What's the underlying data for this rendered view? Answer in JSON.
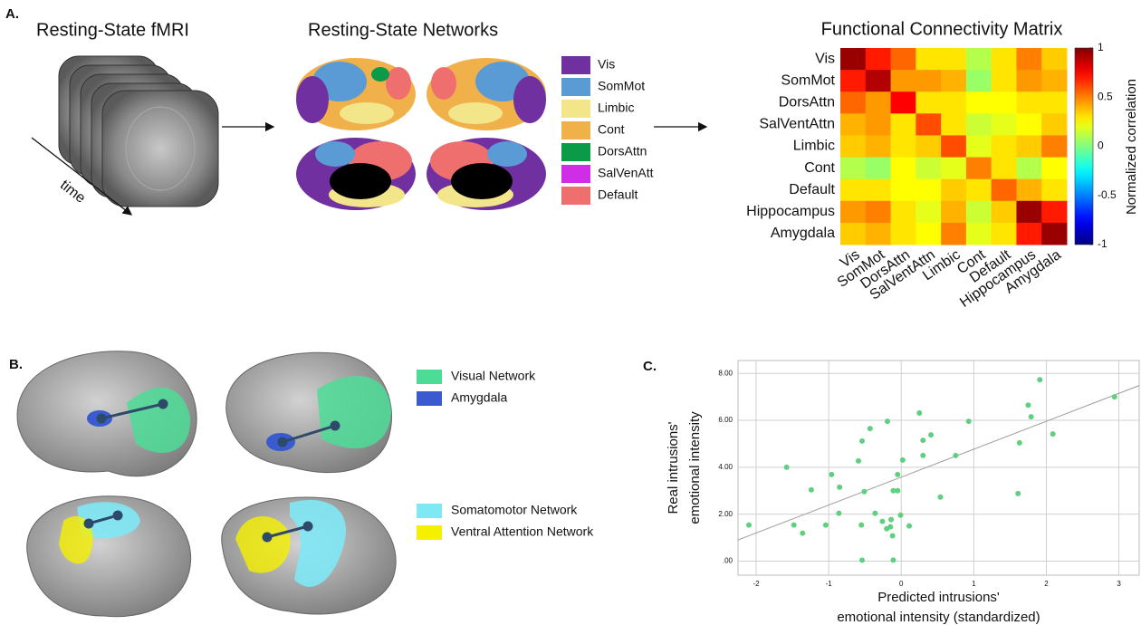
{
  "panel_labels": [
    "A.",
    "B.",
    "C."
  ],
  "panel_a": {
    "fmri_title": "Resting-State fMRI",
    "time_label": "time",
    "networks_title": "Resting-State Networks",
    "networks": [
      {
        "name": "Vis",
        "color": "#7030a0"
      },
      {
        "name": "SomMot",
        "color": "#5b9bd5"
      },
      {
        "name": "Limbic",
        "color": "#f3e58a"
      },
      {
        "name": "Cont",
        "color": "#f0b04a"
      },
      {
        "name": "DorsAttn",
        "color": "#0b9a48"
      },
      {
        "name": "SalVenAtt",
        "color": "#d02ee6"
      },
      {
        "name": "Default",
        "color": "#ef6f6f"
      }
    ]
  },
  "panel_b": {
    "legend": [
      {
        "name": "Visual Network",
        "color": "#4ddc96"
      },
      {
        "name": "Amygdala",
        "color": "#3a5bd0"
      },
      {
        "name": "Somatomotor Network",
        "color": "#7fe8f5"
      },
      {
        "name": "Ventral Attention Network",
        "color": "#f5f000"
      }
    ]
  },
  "chart_data": [
    {
      "type": "heatmap",
      "title": "Functional Connectivity Matrix",
      "rows": [
        "Vis",
        "SomMot",
        "DorsAttn",
        "SalVentAttn",
        "Limbic",
        "Cont",
        "Default",
        "Hippocampus",
        "Amygdala"
      ],
      "columns": [
        "Vis",
        "SomMot",
        "DorsAttn",
        "SalVentAttn",
        "Limbic",
        "Cont",
        "Default",
        "Hippocampus",
        "Amygdala"
      ],
      "values": [
        [
          0.95,
          0.7,
          0.55,
          0.3,
          0.3,
          0.1,
          0.3,
          0.5,
          0.35
        ],
        [
          0.7,
          0.9,
          0.45,
          0.45,
          0.4,
          0.05,
          0.3,
          0.45,
          0.4
        ],
        [
          0.55,
          0.45,
          0.75,
          0.3,
          0.3,
          0.25,
          0.25,
          0.3,
          0.3
        ],
        [
          0.4,
          0.45,
          0.3,
          0.6,
          0.3,
          0.15,
          0.2,
          0.25,
          0.35
        ],
        [
          0.35,
          0.4,
          0.3,
          0.35,
          0.6,
          0.2,
          0.3,
          0.35,
          0.5
        ],
        [
          0.1,
          0.05,
          0.25,
          0.15,
          0.2,
          0.5,
          0.3,
          0.1,
          0.25
        ],
        [
          0.3,
          0.3,
          0.25,
          0.25,
          0.35,
          0.3,
          0.55,
          0.4,
          0.3
        ],
        [
          0.45,
          0.5,
          0.3,
          0.2,
          0.4,
          0.15,
          0.35,
          0.95,
          0.7
        ],
        [
          0.35,
          0.4,
          0.3,
          0.25,
          0.5,
          0.2,
          0.3,
          0.7,
          0.95
        ]
      ],
      "colormap": "jet",
      "zlim": [
        -1,
        1
      ],
      "zticks": [
        1,
        0.5,
        0,
        -0.5,
        -1
      ],
      "colorbar_label": "Normalized correlation"
    },
    {
      "type": "scatter",
      "x_label": [
        "Predicted intrusions'",
        "emotional intensity (standardized)"
      ],
      "y_label": [
        "Real intrusions'",
        "emotional intensity"
      ],
      "x": [
        -2.1,
        -1.58,
        -1.48,
        -1.36,
        -1.24,
        -1.04,
        -0.96,
        -0.86,
        -0.85,
        -0.59,
        -0.55,
        -0.54,
        -0.51,
        -0.54,
        -0.43,
        -0.36,
        -0.26,
        -0.19,
        -0.2,
        -0.15,
        -0.14,
        -0.11,
        -0.12,
        -0.05,
        -0.05,
        -0.01,
        0.02,
        -0.11,
        0.11,
        0.25,
        0.3,
        0.3,
        0.41,
        0.54,
        0.75,
        0.93,
        1.63,
        1.61,
        1.75,
        1.79,
        1.91,
        2.09,
        2.94
      ],
      "values": [
        1.54,
        4.0,
        1.54,
        1.19,
        3.04,
        1.54,
        3.69,
        2.04,
        3.15,
        4.27,
        1.54,
        5.12,
        2.96,
        0.04,
        5.65,
        2.04,
        1.69,
        5.96,
        1.38,
        1.46,
        1.77,
        3.0,
        1.08,
        3.0,
        3.69,
        1.96,
        4.31,
        0.04,
        1.5,
        6.31,
        5.15,
        4.5,
        5.38,
        2.73,
        4.5,
        5.96,
        5.04,
        2.88,
        6.65,
        6.15,
        7.73,
        5.42,
        7.0
      ],
      "color": "#5fcf80",
      "xlim": [
        -2.25,
        3.28
      ],
      "ylim": [
        -0.6,
        8.55
      ],
      "xticks": [
        -2,
        -1,
        0,
        1,
        2,
        3
      ],
      "yticks": [
        {
          "value": 0,
          "label": ".00"
        },
        {
          "value": 2,
          "label": "2.00"
        },
        {
          "value": 4,
          "label": "4.00"
        },
        {
          "value": 6,
          "label": "6.00"
        },
        {
          "value": 8,
          "label": "8.00"
        }
      ],
      "grid": true,
      "fit": {
        "intercept": 3.58,
        "slope": 1.19
      },
      "fit_color": "#9a9a9a"
    }
  ]
}
